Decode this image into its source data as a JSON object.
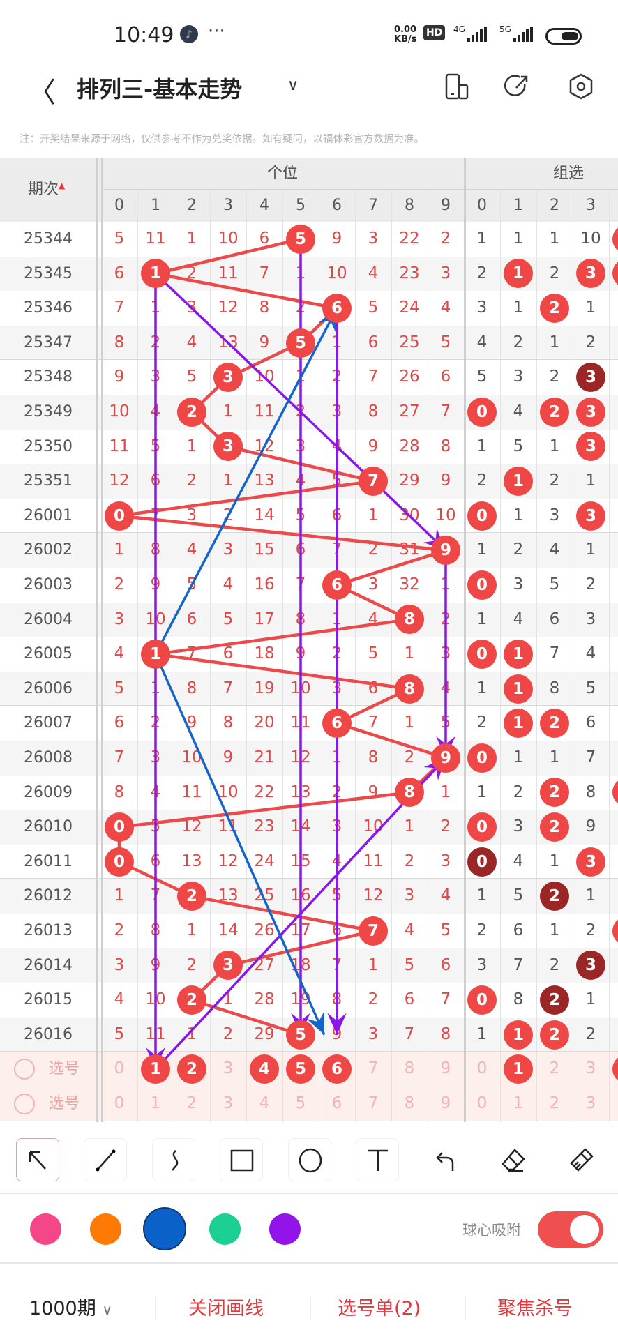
{
  "status_bar": {
    "time": "10:49",
    "net_speed_top": "0.00",
    "net_speed_bottom": "KB/s",
    "hd": "HD",
    "sig1": "4G",
    "sig2": "5G",
    "icons": [
      "music-app-icon",
      "more-dots-icon",
      "signal-icon",
      "battery-icon"
    ]
  },
  "header": {
    "title": "排列三-基本走势",
    "icons": [
      "back-icon",
      "chevron-down-icon",
      "phone-layout-icon",
      "share-icon",
      "settings-icon"
    ]
  },
  "notice": "注：开奖结果来源于网络，仅供参考不作为兑奖依据。如有疑问，以福体彩官方数据为准。",
  "table": {
    "period_header": "期次",
    "group1_header": "个位",
    "group2_header": "组选",
    "digits": [
      "0",
      "1",
      "2",
      "3",
      "4",
      "5",
      "6",
      "7",
      "8",
      "9"
    ],
    "group2_digits": [
      "0",
      "1",
      "2",
      "3"
    ],
    "ball_color": "#ef4646",
    "ball_dark_color": "#9b2626",
    "rows": [
      {
        "issue": "25344",
        "hit": 5,
        "ge": [
          5,
          11,
          1,
          10,
          6,
          5,
          9,
          3,
          22,
          2
        ],
        "zu": [
          "1",
          "1",
          "1",
          "10",
          "r"
        ],
        "zu_ball": [
          "",
          "",
          "",
          "",
          "r"
        ]
      },
      {
        "issue": "25345",
        "hit": 1,
        "ge": [
          6,
          1,
          2,
          11,
          7,
          1,
          10,
          4,
          23,
          3
        ],
        "zu": [
          "2",
          "1",
          "2",
          "3",
          ""
        ],
        "zu_ball": [
          "",
          "r",
          "",
          "r",
          "r"
        ]
      },
      {
        "issue": "25346",
        "hit": 6,
        "ge": [
          7,
          1,
          3,
          12,
          8,
          2,
          6,
          5,
          24,
          4
        ],
        "zu": [
          "3",
          "1",
          "2",
          "1",
          ""
        ],
        "zu_ball": [
          "",
          "",
          "r",
          "",
          ""
        ]
      },
      {
        "issue": "25347",
        "hit": 5,
        "ge": [
          8,
          2,
          4,
          13,
          9,
          5,
          1,
          6,
          25,
          5
        ],
        "zu": [
          "4",
          "2",
          "1",
          "2",
          ""
        ],
        "zu_ball": [
          "",
          "",
          "",
          "",
          ""
        ]
      },
      {
        "issue": "25348",
        "hit": 3,
        "ge": [
          9,
          3,
          5,
          3,
          10,
          1,
          2,
          7,
          26,
          6
        ],
        "zu": [
          "5",
          "3",
          "2",
          "3",
          ""
        ],
        "zu_ball": [
          "",
          "",
          "",
          "d",
          ""
        ]
      },
      {
        "issue": "25349",
        "hit": 2,
        "ge": [
          10,
          4,
          2,
          1,
          11,
          2,
          3,
          8,
          27,
          7
        ],
        "zu": [
          "0",
          "4",
          "2",
          "3",
          ""
        ],
        "zu_ball": [
          "r",
          "",
          "r",
          "r",
          ""
        ]
      },
      {
        "issue": "25350",
        "hit": 3,
        "ge": [
          11,
          5,
          1,
          3,
          12,
          3,
          4,
          9,
          28,
          8
        ],
        "zu": [
          "1",
          "5",
          "1",
          "3",
          ""
        ],
        "zu_ball": [
          "",
          "",
          "",
          "r",
          ""
        ]
      },
      {
        "issue": "25351",
        "hit": 7,
        "ge": [
          12,
          6,
          2,
          1,
          13,
          4,
          5,
          7,
          29,
          9
        ],
        "zu": [
          "2",
          "1",
          "2",
          "1",
          ""
        ],
        "zu_ball": [
          "",
          "r",
          "",
          "",
          ""
        ]
      },
      {
        "issue": "26001",
        "hit": 0,
        "ge": [
          0,
          7,
          3,
          2,
          14,
          5,
          6,
          1,
          30,
          10
        ],
        "zu": [
          "0",
          "1",
          "3",
          "3",
          ""
        ],
        "zu_ball": [
          "r",
          "",
          "",
          "r",
          ""
        ]
      },
      {
        "issue": "26002",
        "hit": 9,
        "ge": [
          1,
          8,
          4,
          3,
          15,
          6,
          7,
          2,
          31,
          9
        ],
        "zu": [
          "1",
          "2",
          "4",
          "1",
          ""
        ],
        "zu_ball": [
          "",
          "",
          "",
          "",
          ""
        ]
      },
      {
        "issue": "26003",
        "hit": 6,
        "ge": [
          2,
          9,
          5,
          4,
          16,
          7,
          6,
          3,
          32,
          1
        ],
        "zu": [
          "0",
          "3",
          "5",
          "2",
          ""
        ],
        "zu_ball": [
          "r",
          "",
          "",
          "",
          ""
        ]
      },
      {
        "issue": "26004",
        "hit": 8,
        "ge": [
          3,
          10,
          6,
          5,
          17,
          8,
          1,
          4,
          8,
          2
        ],
        "zu": [
          "1",
          "4",
          "6",
          "3",
          ""
        ],
        "zu_ball": [
          "",
          "",
          "",
          "",
          ""
        ]
      },
      {
        "issue": "26005",
        "hit": 1,
        "ge": [
          4,
          1,
          7,
          6,
          18,
          9,
          2,
          5,
          1,
          3
        ],
        "zu": [
          "0",
          "1",
          "7",
          "4",
          ""
        ],
        "zu_ball": [
          "r",
          "r",
          "",
          "",
          ""
        ]
      },
      {
        "issue": "26006",
        "hit": 8,
        "ge": [
          5,
          1,
          8,
          7,
          19,
          10,
          3,
          6,
          8,
          4
        ],
        "zu": [
          "1",
          "1",
          "8",
          "5",
          ""
        ],
        "zu_ball": [
          "",
          "r",
          "",
          "",
          ""
        ]
      },
      {
        "issue": "26007",
        "hit": 6,
        "ge": [
          6,
          2,
          9,
          8,
          20,
          11,
          6,
          7,
          1,
          5
        ],
        "zu": [
          "2",
          "1",
          "2",
          "6",
          ""
        ],
        "zu_ball": [
          "",
          "r",
          "r",
          "",
          ""
        ]
      },
      {
        "issue": "26008",
        "hit": 9,
        "ge": [
          7,
          3,
          10,
          9,
          21,
          12,
          1,
          8,
          2,
          9
        ],
        "zu": [
          "0",
          "1",
          "1",
          "7",
          ""
        ],
        "zu_ball": [
          "r",
          "",
          "",
          "",
          ""
        ]
      },
      {
        "issue": "26009",
        "hit": 8,
        "ge": [
          8,
          4,
          11,
          10,
          22,
          13,
          2,
          9,
          8,
          1
        ],
        "zu": [
          "1",
          "2",
          "2",
          "8",
          ""
        ],
        "zu_ball": [
          "",
          "",
          "r",
          "",
          "r"
        ]
      },
      {
        "issue": "26010",
        "hit": 0,
        "ge": [
          0,
          5,
          12,
          11,
          23,
          14,
          3,
          10,
          1,
          2
        ],
        "zu": [
          "0",
          "3",
          "2",
          "9",
          ""
        ],
        "zu_ball": [
          "r",
          "",
          "r",
          "",
          ""
        ]
      },
      {
        "issue": "26011",
        "hit": 0,
        "ge": [
          0,
          6,
          13,
          12,
          24,
          15,
          4,
          11,
          2,
          3
        ],
        "zu": [
          "0",
          "4",
          "1",
          "3",
          ""
        ],
        "zu_ball": [
          "d",
          "",
          "",
          "r",
          ""
        ]
      },
      {
        "issue": "26012",
        "hit": 2,
        "ge": [
          1,
          7,
          2,
          13,
          25,
          16,
          5,
          12,
          3,
          4
        ],
        "zu": [
          "1",
          "5",
          "2",
          "1",
          ""
        ],
        "zu_ball": [
          "",
          "",
          "d",
          "",
          ""
        ]
      },
      {
        "issue": "26013",
        "hit": 7,
        "ge": [
          2,
          8,
          1,
          14,
          26,
          17,
          6,
          7,
          4,
          5
        ],
        "zu": [
          "2",
          "6",
          "1",
          "2",
          ""
        ],
        "zu_ball": [
          "",
          "",
          "",
          "",
          "r"
        ]
      },
      {
        "issue": "26014",
        "hit": 3,
        "ge": [
          3,
          9,
          2,
          3,
          27,
          18,
          7,
          1,
          5,
          6
        ],
        "zu": [
          "3",
          "7",
          "2",
          "3",
          ""
        ],
        "zu_ball": [
          "",
          "",
          "",
          "d",
          ""
        ]
      },
      {
        "issue": "26015",
        "hit": 2,
        "ge": [
          4,
          10,
          2,
          1,
          28,
          19,
          8,
          2,
          6,
          7
        ],
        "zu": [
          "0",
          "8",
          "2",
          "1",
          ""
        ],
        "zu_ball": [
          "r",
          "",
          "d",
          "",
          ""
        ]
      },
      {
        "issue": "26016",
        "hit": 5,
        "ge": [
          5,
          11,
          1,
          2,
          29,
          5,
          9,
          3,
          7,
          8
        ],
        "zu": [
          "1",
          "1",
          "2",
          "2",
          ""
        ],
        "zu_ball": [
          "",
          "r",
          "r",
          "",
          ""
        ]
      }
    ],
    "picker_rows": [
      {
        "label": "选号",
        "ge": [
          "0",
          "1",
          "2",
          "3",
          "4",
          "5",
          "6",
          "7",
          "8",
          "9"
        ],
        "ge_selected": [
          1,
          2,
          4,
          5,
          6
        ],
        "zu": [
          "0",
          "1",
          "2",
          "3"
        ],
        "zu_selected": [
          1,
          4
        ]
      },
      {
        "label": "选号",
        "ge": [
          "0",
          "1",
          "2",
          "3",
          "4",
          "5",
          "6",
          "7",
          "8",
          "9"
        ],
        "ge_selected": [],
        "zu": [
          "0",
          "1",
          "2",
          "3"
        ],
        "zu_selected": []
      }
    ]
  },
  "drawings": [
    {
      "color": "#8a17e8",
      "from": {
        "row": 1,
        "digit": 1
      },
      "to": {
        "row": 24,
        "digit": 1
      }
    },
    {
      "color": "#8a17e8",
      "from": {
        "row": 0,
        "digit": 5
      },
      "to": {
        "row": 23,
        "digit": 5
      }
    },
    {
      "color": "#8a17e8",
      "from": {
        "row": 2,
        "digit": 6
      },
      "to": {
        "row": 23,
        "digit": 6
      }
    },
    {
      "color": "#8a17e8",
      "from": {
        "row": 9,
        "digit": 9
      },
      "to": {
        "row": 15,
        "digit": 9
      }
    },
    {
      "color": "#8a17e8",
      "from": {
        "row": 1,
        "digit": 1
      },
      "to": {
        "row": 9,
        "digit": 9
      }
    },
    {
      "color": "#8a17e8",
      "from": {
        "row": 24,
        "digit": 1
      },
      "to": {
        "row": 15,
        "digit": 9
      }
    },
    {
      "color": "#1565c8",
      "from": {
        "row": 12,
        "digit": 1
      },
      "to": {
        "row": 2,
        "digit": 6
      }
    },
    {
      "color": "#1565c8",
      "from": {
        "row": 12,
        "digit": 1
      },
      "to": {
        "row": 23,
        "digit": 5.65
      }
    }
  ],
  "tools": [
    {
      "name": "select-arrow",
      "selected": true
    },
    {
      "name": "line"
    },
    {
      "name": "curve"
    },
    {
      "name": "rectangle"
    },
    {
      "name": "circle"
    },
    {
      "name": "text"
    },
    {
      "name": "undo"
    },
    {
      "name": "eraser"
    },
    {
      "name": "clear-brush"
    }
  ],
  "colors": [
    {
      "hex": "#f5468a",
      "selected": false
    },
    {
      "hex": "#ff7a05",
      "selected": false
    },
    {
      "hex": "#0a62c8",
      "selected": true
    },
    {
      "hex": "#1ccf92",
      "selected": false
    },
    {
      "hex": "#9214e8",
      "selected": false
    }
  ],
  "snap": {
    "label": "球心吸附",
    "on": true
  },
  "bottom": {
    "periods": "1000期",
    "close_draw": "关闭画线",
    "pick_list": "选号单(2)",
    "focus_kill": "聚焦杀号",
    "accent": "#e0393e"
  }
}
